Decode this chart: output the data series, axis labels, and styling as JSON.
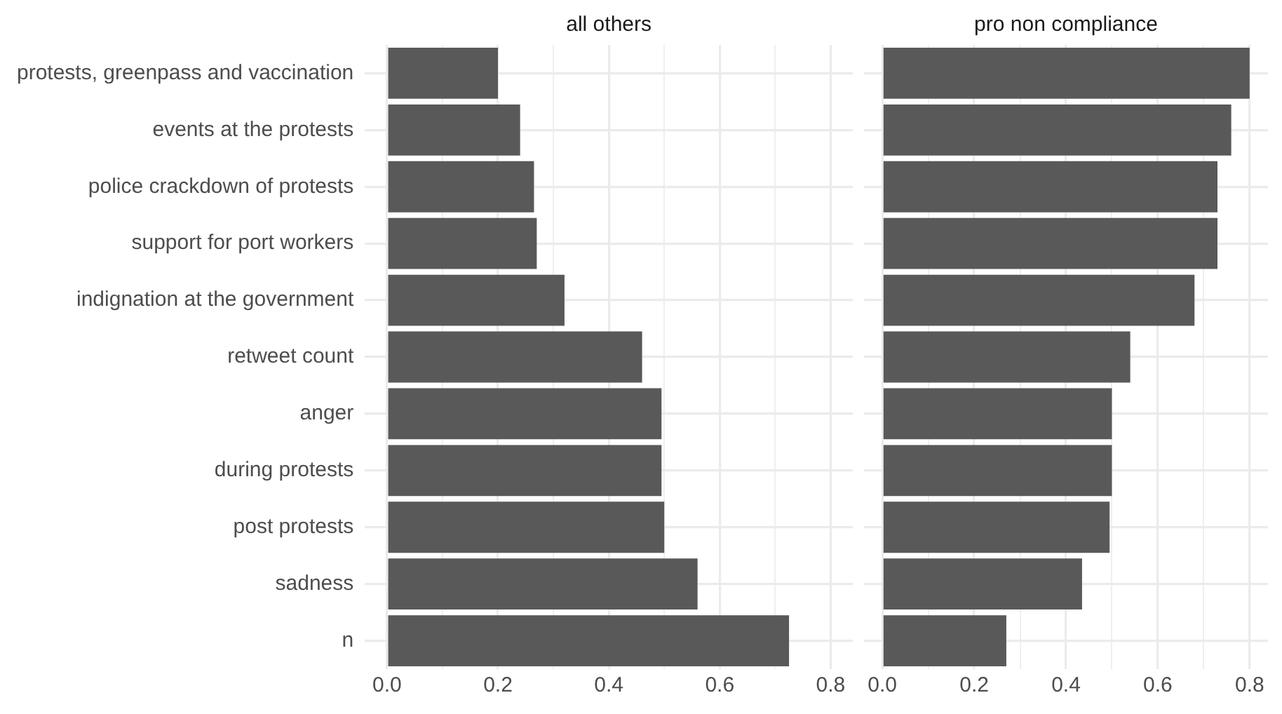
{
  "chart_data": [
    {
      "type": "bar",
      "orientation": "horizontal",
      "title": "all others",
      "categories": [
        "protests, greenpass and vaccination",
        "events at the protests",
        "police crackdown of protests",
        "support for port workers",
        "indignation at the government",
        "retweet count",
        "anger",
        "during protests",
        "post protests",
        "sadness",
        "n"
      ],
      "values": [
        0.2,
        0.24,
        0.265,
        0.27,
        0.32,
        0.46,
        0.495,
        0.495,
        0.5,
        0.56,
        0.725
      ],
      "color": "#595959",
      "xlim": [
        -0.04,
        0.84
      ],
      "xticks": [
        {
          "value": 0,
          "label": "0.0"
        },
        {
          "value": 0.1,
          "label": null
        },
        0.2,
        {
          "value": 0.3,
          "label": null
        },
        0.4,
        {
          "value": 0.5,
          "label": null
        },
        0.6,
        {
          "value": 0.7,
          "label": null
        },
        0.8
      ],
      "grid": true,
      "legend": false
    },
    {
      "type": "bar",
      "orientation": "horizontal",
      "title": "pro non compliance",
      "categories": [
        "protests, greenpass and vaccination",
        "events at the protests",
        "police crackdown of protests",
        "support for port workers",
        "indignation at the government",
        "retweet count",
        "anger",
        "during protests",
        "post protests",
        "sadness",
        "n"
      ],
      "values": [
        0.8,
        0.76,
        0.73,
        0.73,
        0.68,
        0.54,
        0.5,
        0.5,
        0.495,
        0.435,
        0.27
      ],
      "color": "#595959",
      "xlim": [
        -0.04,
        0.84
      ],
      "xticks": [
        {
          "value": 0,
          "label": "0.0"
        },
        {
          "value": 0.1,
          "label": null
        },
        0.2,
        {
          "value": 0.3,
          "label": null
        },
        0.4,
        {
          "value": 0.5,
          "label": null
        },
        0.6,
        {
          "value": 0.7,
          "label": null
        },
        0.8
      ],
      "grid": true,
      "legend": false,
      "tick_labels": "x"
    }
  ]
}
